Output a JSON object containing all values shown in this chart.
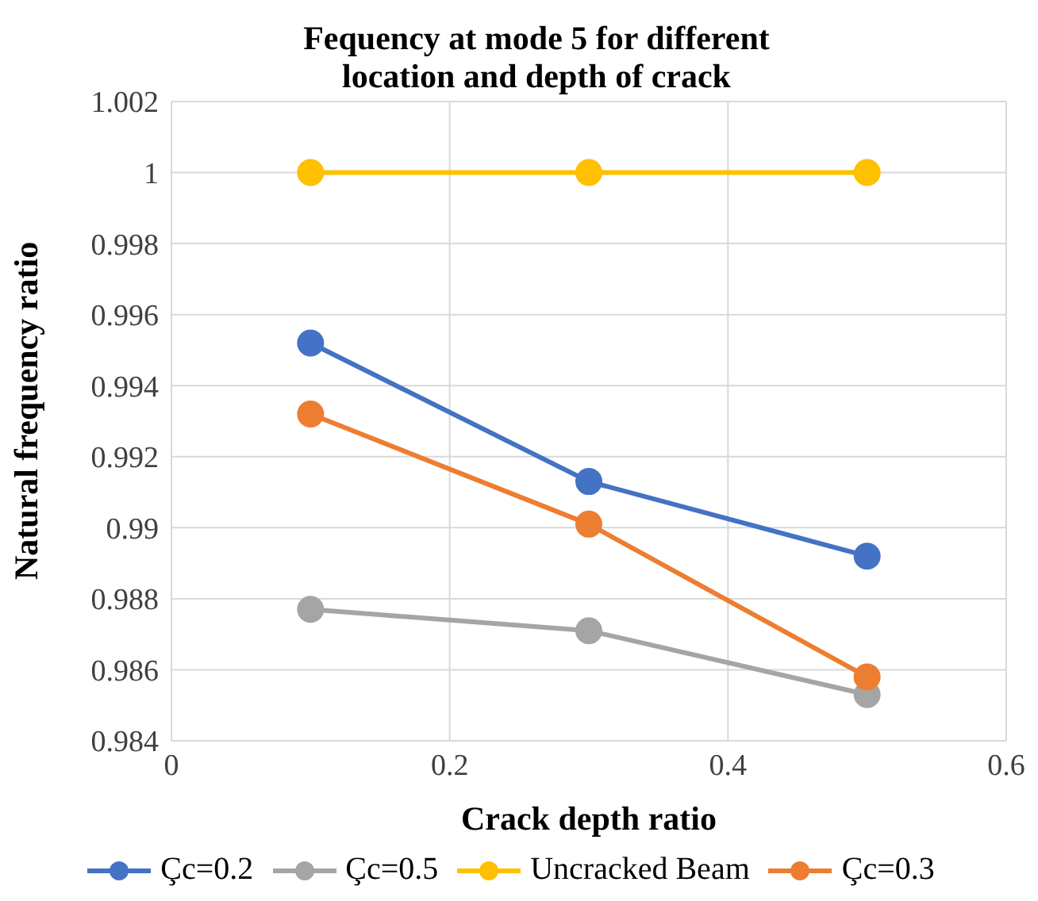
{
  "chart_data": {
    "type": "line",
    "title": "Fequency at mode 5 for different location and depth of crack",
    "xlabel": "Crack depth ratio",
    "ylabel": "Natural frequency ratio",
    "x": [
      0.1,
      0.3,
      0.5
    ],
    "series": [
      {
        "name": "Çc=0.2",
        "color": "#4472c4",
        "values": [
          0.9952,
          0.9913,
          0.9892
        ]
      },
      {
        "name": "Çc=0.5",
        "color": "#a5a5a5",
        "values": [
          0.9877,
          0.9871,
          0.9853
        ]
      },
      {
        "name": "Uncracked Beam",
        "color": "#ffc000",
        "values": [
          1,
          1,
          1
        ]
      },
      {
        "name": "Çc=0.3",
        "color": "#ed7d31",
        "values": [
          0.9932,
          0.9901,
          0.9858
        ]
      }
    ],
    "xlim": [
      0,
      0.6
    ],
    "xticks": [
      0,
      0.2,
      0.4,
      0.6
    ],
    "ylim": [
      0.984,
      1.002
    ],
    "yticks": [
      0.984,
      0.986,
      0.988,
      0.99,
      0.992,
      0.994,
      0.996,
      0.998,
      1,
      1.002
    ],
    "grid": true,
    "legend": "bottom",
    "marker": "circle",
    "line_style": "solid"
  }
}
